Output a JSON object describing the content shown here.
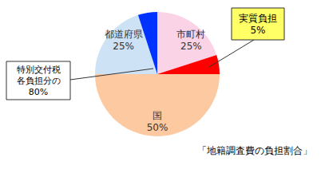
{
  "chart_data": {
    "type": "pie",
    "title": "「地籍調査費の負担割合」",
    "categories": [
      "市町村",
      "国",
      "都道府県"
    ],
    "values": [
      25,
      50,
      25
    ],
    "value_labels": [
      "25%",
      "50%",
      "25%"
    ],
    "colors": [
      "#fbd3e6",
      "#fcc9a0",
      "#cde2f5"
    ],
    "data_labels": true,
    "real_burden": {
      "label": "実質負担",
      "values": [
        5,
        null,
        5
      ],
      "value_label": "5%",
      "colors": [
        "#ff0000",
        null,
        "#0033ff"
      ]
    },
    "special_grant": {
      "label": [
        "特別交付税",
        "各負担分の"
      ],
      "value": 80,
      "value_label": "80%"
    }
  }
}
